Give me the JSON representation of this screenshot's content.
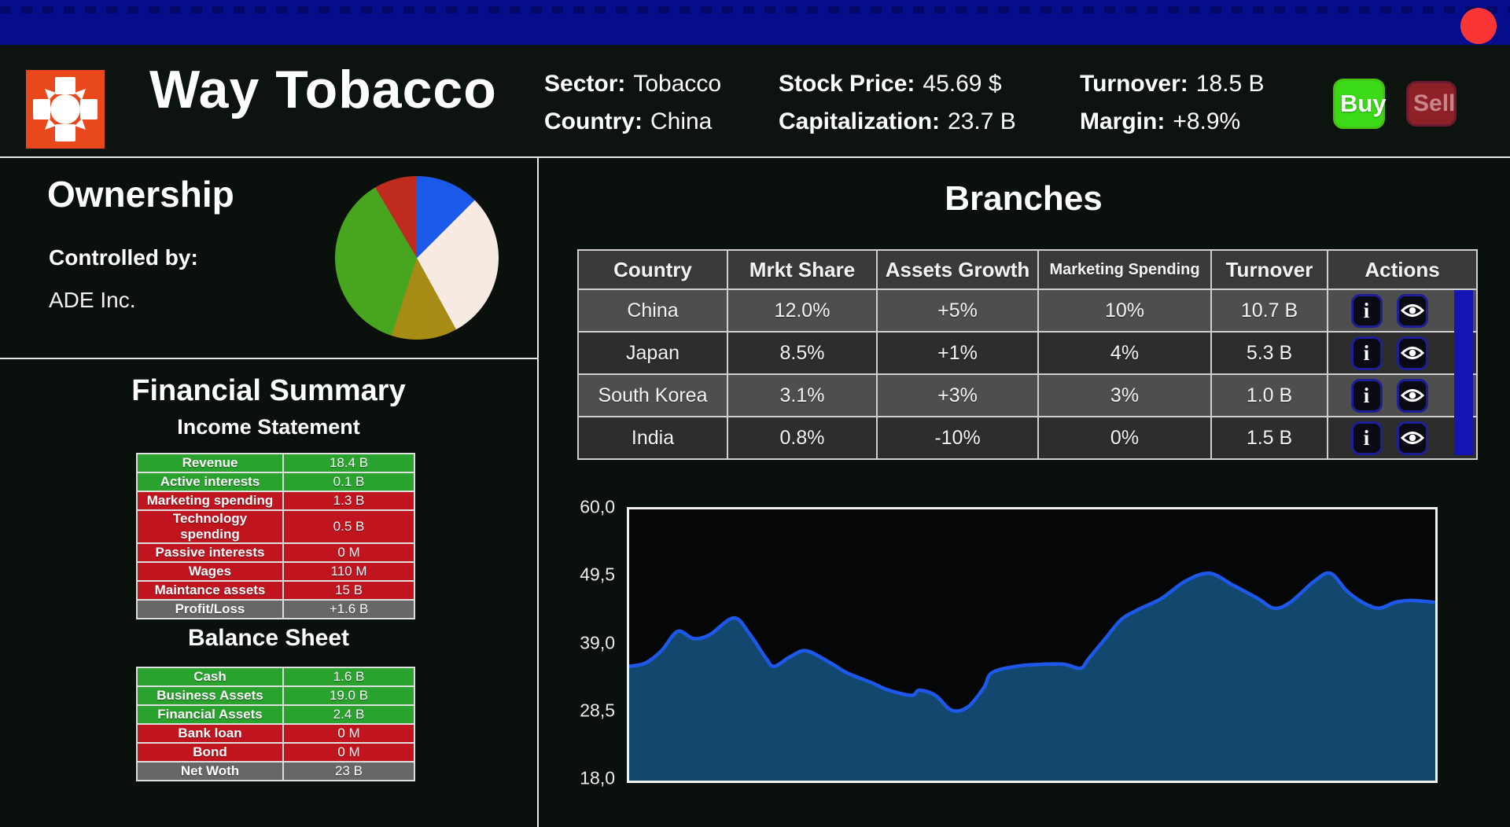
{
  "header": {
    "company_name": "Way Tobacco",
    "sector_label": "Sector:",
    "sector_value": "Tobacco",
    "country_label": "Country:",
    "country_value": "China",
    "stock_price_label": "Stock Price:",
    "stock_price_value": "45.69 $",
    "capitalization_label": "Capitalization:",
    "capitalization_value": "23.7 B",
    "turnover_label": "Turnover:",
    "turnover_value": "18.5 B",
    "margin_label": "Margin:",
    "margin_value": "+8.9%",
    "buy_label": "Buy",
    "sell_label": "Sell",
    "logo_color": "#e8481c"
  },
  "ownership": {
    "title": "Ownership",
    "controlled_by_label": "Controlled by:",
    "controlled_by_value": "ADE Inc."
  },
  "financial_summary": {
    "title": "Financial Summary",
    "income_statement": {
      "title": "Income Statement",
      "rows": [
        {
          "label": "Revenue",
          "value": "18.4 B",
          "status": "positive"
        },
        {
          "label": "Active interests",
          "value": "0.1 B",
          "status": "positive"
        },
        {
          "label": "Marketing spending",
          "value": "1.3 B",
          "status": "negative"
        },
        {
          "label": "Technology spending",
          "value": "0.5 B",
          "status": "negative"
        },
        {
          "label": "Passive interests",
          "value": "0 M",
          "status": "negative"
        },
        {
          "label": "Wages",
          "value": "110 M",
          "status": "negative"
        },
        {
          "label": "Maintance assets",
          "value": "15 B",
          "status": "negative"
        },
        {
          "label": "Profit/Loss",
          "value": "+1.6 B",
          "status": "total"
        }
      ]
    },
    "balance_sheet": {
      "title": "Balance Sheet",
      "rows": [
        {
          "label": "Cash",
          "value": "1.6 B",
          "status": "positive"
        },
        {
          "label": "Business Assets",
          "value": "19.0 B",
          "status": "positive"
        },
        {
          "label": "Financial Assets",
          "value": "2.4 B",
          "status": "positive"
        },
        {
          "label": "Bank loan",
          "value": "0 M",
          "status": "negative"
        },
        {
          "label": "Bond",
          "value": "0 M",
          "status": "negative"
        },
        {
          "label": "Net Woth",
          "value": "23 B",
          "status": "total"
        }
      ]
    },
    "status_colors": {
      "positive": "#2aa22e",
      "negative": "#c0141f",
      "total": "#676767"
    }
  },
  "branches": {
    "title": "Branches",
    "columns": [
      "Country",
      "Mrkt Share",
      "Assets Growth",
      "Marketing Spending",
      "Turnover",
      "Actions"
    ],
    "info_icon_glyph": "i",
    "rows": [
      {
        "country": "China",
        "mrkt_share": "12.0%",
        "assets_growth": "+5%",
        "marketing_spending": "10%",
        "turnover": "10.7 B"
      },
      {
        "country": "Japan",
        "mrkt_share": "8.5%",
        "assets_growth": "+1%",
        "marketing_spending": "4%",
        "turnover": "5.3 B"
      },
      {
        "country": "South Korea",
        "mrkt_share": "3.1%",
        "assets_growth": "+3%",
        "marketing_spending": "3%",
        "turnover": "1.0 B"
      },
      {
        "country": "India",
        "mrkt_share": "0.8%",
        "assets_growth": "-10%",
        "marketing_spending": "0%",
        "turnover": "1.5 B"
      }
    ]
  },
  "chart_data": [
    {
      "type": "pie",
      "title": "Ownership shares",
      "legend": "none",
      "start_angle_deg": 0,
      "segments": [
        {
          "name": "blue-slice",
          "percent": 12.5,
          "color": "#1b59e8"
        },
        {
          "name": "cream-slice",
          "percent": 29.5,
          "color": "#f6eae2"
        },
        {
          "name": "olive-slice",
          "percent": 13.0,
          "color": "#a68c15"
        },
        {
          "name": "green-slice",
          "percent": 36.5,
          "color": "#48a51f"
        },
        {
          "name": "red-slice",
          "percent": 8.5,
          "color": "#c02b20"
        }
      ]
    },
    {
      "type": "area",
      "title": "Stock price history",
      "ylim": [
        18,
        60
      ],
      "ytick_labels": [
        "60,0",
        "49,5",
        "39,0",
        "28,5",
        "18,0"
      ],
      "grid": false,
      "line_color": "#1e58ea",
      "fill_color": "#12486d",
      "points": [
        [
          0.0,
          35.7
        ],
        [
          0.02,
          36.2
        ],
        [
          0.04,
          38.1
        ],
        [
          0.06,
          41.1
        ],
        [
          0.08,
          40.0
        ],
        [
          0.1,
          40.6
        ],
        [
          0.13,
          43.2
        ],
        [
          0.15,
          40.6
        ],
        [
          0.17,
          36.9
        ],
        [
          0.18,
          35.7
        ],
        [
          0.2,
          37.2
        ],
        [
          0.22,
          38.1
        ],
        [
          0.25,
          36.2
        ],
        [
          0.27,
          34.7
        ],
        [
          0.3,
          33.2
        ],
        [
          0.32,
          32.1
        ],
        [
          0.35,
          31.2
        ],
        [
          0.36,
          32.0
        ],
        [
          0.38,
          31.2
        ],
        [
          0.4,
          28.9
        ],
        [
          0.42,
          29.4
        ],
        [
          0.44,
          32.4
        ],
        [
          0.45,
          34.7
        ],
        [
          0.48,
          35.7
        ],
        [
          0.51,
          36.0
        ],
        [
          0.54,
          36.0
        ],
        [
          0.56,
          35.4
        ],
        [
          0.57,
          36.9
        ],
        [
          0.59,
          39.9
        ],
        [
          0.61,
          42.9
        ],
        [
          0.63,
          44.4
        ],
        [
          0.66,
          46.2
        ],
        [
          0.69,
          48.9
        ],
        [
          0.72,
          50.1
        ],
        [
          0.75,
          48.2
        ],
        [
          0.78,
          46.2
        ],
        [
          0.8,
          44.7
        ],
        [
          0.82,
          45.6
        ],
        [
          0.85,
          48.9
        ],
        [
          0.87,
          50.1
        ],
        [
          0.89,
          47.4
        ],
        [
          0.91,
          45.6
        ],
        [
          0.93,
          44.7
        ],
        [
          0.95,
          45.6
        ],
        [
          0.97,
          45.9
        ],
        [
          1.0,
          45.6
        ]
      ]
    }
  ]
}
